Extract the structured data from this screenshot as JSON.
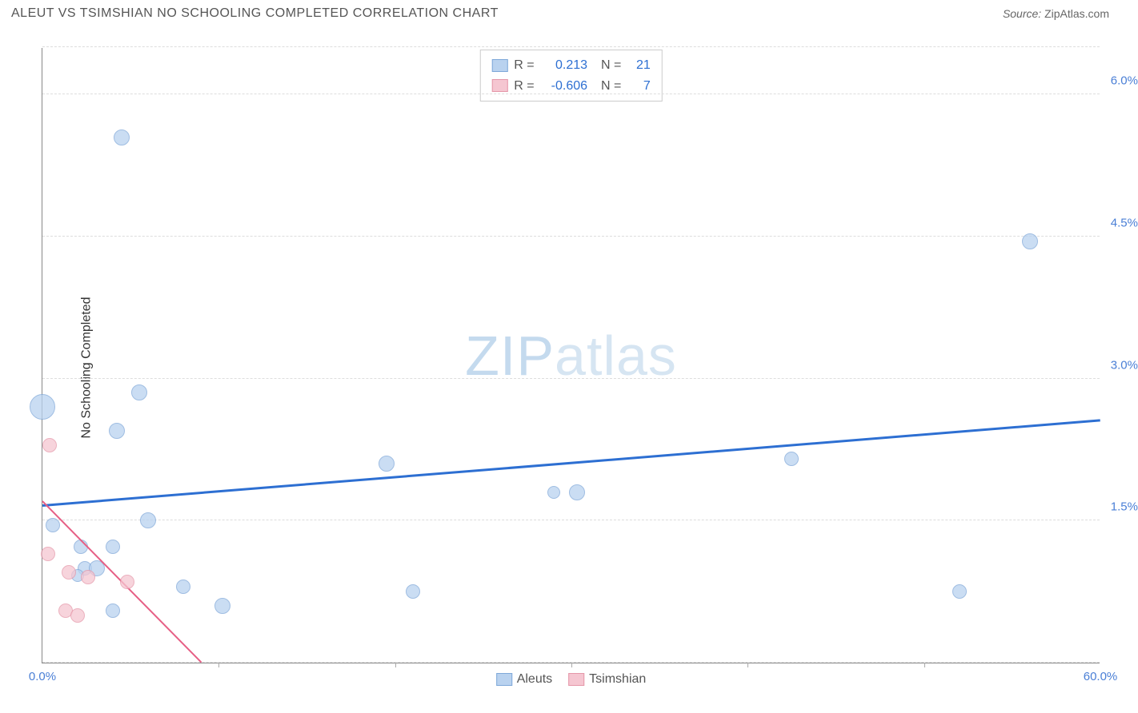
{
  "header": {
    "title": "ALEUT VS TSIMSHIAN NO SCHOOLING COMPLETED CORRELATION CHART",
    "source_label": "Source:",
    "source_value": "ZipAtlas.com"
  },
  "watermark": {
    "bold": "ZIP",
    "light": "atlas"
  },
  "chart": {
    "type": "scatter",
    "ylabel": "No Schooling Completed",
    "background_color": "#ffffff",
    "grid_color": "#dddddd",
    "xlim": [
      0,
      60
    ],
    "ylim": [
      0,
      6.5
    ],
    "xtick_labels": [
      {
        "x": 0,
        "label": "0.0%"
      },
      {
        "x": 60,
        "label": "60.0%"
      }
    ],
    "xtick_marks": [
      10,
      20,
      30,
      40,
      50
    ],
    "ytick_labels": [
      {
        "y": 1.5,
        "label": "1.5%"
      },
      {
        "y": 3.0,
        "label": "3.0%"
      },
      {
        "y": 4.5,
        "label": "4.5%"
      },
      {
        "y": 6.0,
        "label": "6.0%"
      }
    ],
    "gridlines_h": [
      0.0,
      1.5,
      3.0,
      4.5,
      6.0,
      6.5
    ],
    "series": [
      {
        "name": "Aleuts",
        "fill_color": "#b9d2ef",
        "stroke_color": "#7fa8d9",
        "fill_opacity": 0.75,
        "points": [
          {
            "x": 4.5,
            "y": 5.55,
            "r": 10
          },
          {
            "x": 56.0,
            "y": 4.45,
            "r": 10
          },
          {
            "x": 5.5,
            "y": 2.85,
            "r": 10
          },
          {
            "x": 0.0,
            "y": 2.7,
            "r": 16
          },
          {
            "x": 4.2,
            "y": 2.45,
            "r": 10
          },
          {
            "x": 42.5,
            "y": 2.15,
            "r": 9
          },
          {
            "x": 19.5,
            "y": 2.1,
            "r": 10
          },
          {
            "x": 29.0,
            "y": 1.8,
            "r": 8
          },
          {
            "x": 30.3,
            "y": 1.8,
            "r": 10
          },
          {
            "x": 6.0,
            "y": 1.5,
            "r": 10
          },
          {
            "x": 0.6,
            "y": 1.45,
            "r": 9
          },
          {
            "x": 2.2,
            "y": 1.22,
            "r": 9
          },
          {
            "x": 4.0,
            "y": 1.22,
            "r": 9
          },
          {
            "x": 2.4,
            "y": 1.0,
            "r": 9
          },
          {
            "x": 3.1,
            "y": 1.0,
            "r": 10
          },
          {
            "x": 2.0,
            "y": 0.92,
            "r": 8
          },
          {
            "x": 8.0,
            "y": 0.8,
            "r": 9
          },
          {
            "x": 21.0,
            "y": 0.75,
            "r": 9
          },
          {
            "x": 52.0,
            "y": 0.75,
            "r": 9
          },
          {
            "x": 10.2,
            "y": 0.6,
            "r": 10
          },
          {
            "x": 4.0,
            "y": 0.55,
            "r": 9
          }
        ],
        "trend": {
          "x1": 0,
          "y1": 1.65,
          "x2": 60,
          "y2": 2.55,
          "color": "#2d6fd2",
          "width": 2.5
        }
      },
      {
        "name": "Tsimshian",
        "fill_color": "#f5c6d1",
        "stroke_color": "#e597a9",
        "fill_opacity": 0.75,
        "points": [
          {
            "x": 0.4,
            "y": 2.3,
            "r": 9
          },
          {
            "x": 0.3,
            "y": 1.15,
            "r": 9
          },
          {
            "x": 1.5,
            "y": 0.95,
            "r": 9
          },
          {
            "x": 2.6,
            "y": 0.9,
            "r": 9
          },
          {
            "x": 4.8,
            "y": 0.85,
            "r": 9
          },
          {
            "x": 1.3,
            "y": 0.55,
            "r": 9
          },
          {
            "x": 2.0,
            "y": 0.5,
            "r": 9
          }
        ],
        "trend": {
          "x1": 0,
          "y1": 1.7,
          "x2": 9,
          "y2": 0.0,
          "color": "#e65f85",
          "width": 2
        }
      }
    ],
    "top_legend": [
      {
        "swatch_fill": "#b9d2ef",
        "swatch_stroke": "#7fa8d9",
        "r": "0.213",
        "n": "21"
      },
      {
        "swatch_fill": "#f5c6d1",
        "swatch_stroke": "#e597a9",
        "r": "-0.606",
        "n": "7"
      }
    ],
    "bottom_legend": [
      {
        "swatch_fill": "#b9d2ef",
        "swatch_stroke": "#7fa8d9",
        "label": "Aleuts"
      },
      {
        "swatch_fill": "#f5c6d1",
        "swatch_stroke": "#e597a9",
        "label": "Tsimshian"
      }
    ]
  }
}
